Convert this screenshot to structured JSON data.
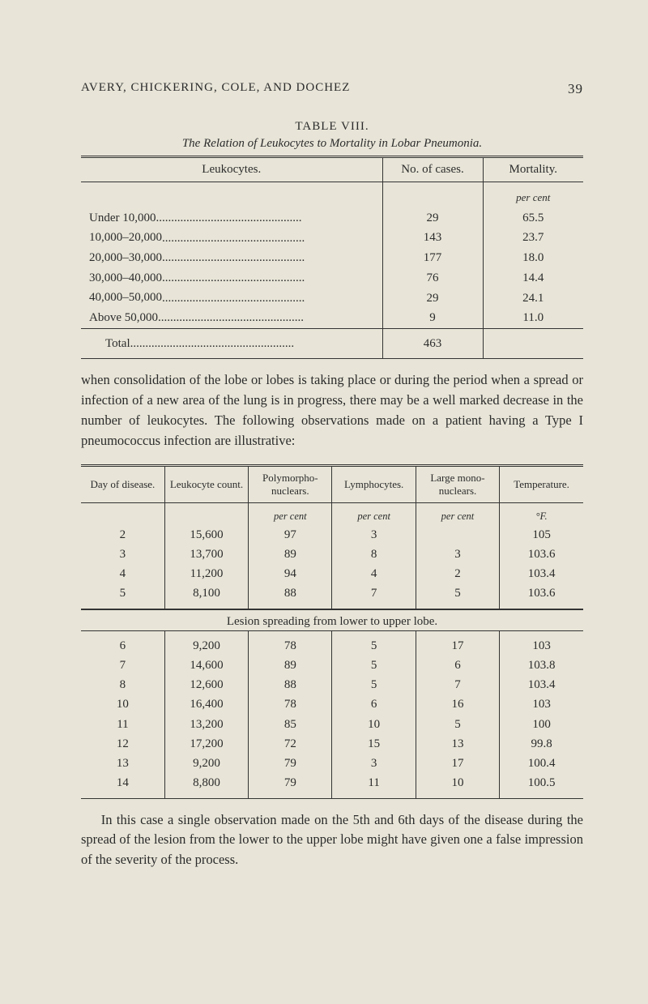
{
  "page": {
    "running_head": "AVERY, CHICKERING, COLE, AND DOCHEZ",
    "page_number": "39"
  },
  "table1": {
    "label": "TABLE VIII.",
    "caption": "The Relation of Leukocytes to Mortality in Lobar Pneumonia.",
    "headers": {
      "col1": "Leukocytes.",
      "col2": "No. of cases.",
      "col3": "Mortality."
    },
    "unit_row": {
      "col3": "per cent"
    },
    "rows": [
      {
        "label": "Under 10,000",
        "cases": "29",
        "mortality": "65.5"
      },
      {
        "label": "10,000–20,000",
        "cases": "143",
        "mortality": "23.7"
      },
      {
        "label": "20,000–30,000",
        "cases": "177",
        "mortality": "18.0"
      },
      {
        "label": "30,000–40,000",
        "cases": "76",
        "mortality": "14.4"
      },
      {
        "label": "40,000–50,000",
        "cases": "29",
        "mortality": "24.1"
      },
      {
        "label": "Above 50,000",
        "cases": "9",
        "mortality": "11.0"
      }
    ],
    "total": {
      "label": "Total",
      "cases": "463",
      "mortality": ""
    }
  },
  "paragraph1": "when consolidation of the lobe or lobes is taking place or during the period when a spread or infection of a new area of the lung is in progress, there may be a well marked decrease in the number of leukocytes. The following observations made on a patient having a Type I pneumococcus infection are illustrative:",
  "table2": {
    "headers": {
      "c1": "Day of disease.",
      "c2": "Leukocyte count.",
      "c3": "Polymorpho-nuclears.",
      "c4": "Lymphocytes.",
      "c5": "Large mono-nuclears.",
      "c6": "Temperature."
    },
    "unit_row": {
      "c3": "per cent",
      "c4": "per cent",
      "c5": "per cent",
      "c6": "°F."
    },
    "rows": [
      {
        "c1": "2",
        "c2": "15,600",
        "c3": "97",
        "c4": "3",
        "c5": "",
        "c6": "105"
      },
      {
        "c1": "3",
        "c2": "13,700",
        "c3": "89",
        "c4": "8",
        "c5": "3",
        "c6": "103.6"
      },
      {
        "c1": "4",
        "c2": "11,200",
        "c3": "94",
        "c4": "4",
        "c5": "2",
        "c6": "103.4"
      },
      {
        "c1": "5",
        "c2": "8,100",
        "c3": "88",
        "c4": "7",
        "c5": "5",
        "c6": "103.6"
      }
    ]
  },
  "lesion_caption": "Lesion spreading from lower to upper lobe.",
  "table3": {
    "rows": [
      {
        "c1": "6",
        "c2": "9,200",
        "c3": "78",
        "c4": "5",
        "c5": "17",
        "c6": "103"
      },
      {
        "c1": "7",
        "c2": "14,600",
        "c3": "89",
        "c4": "5",
        "c5": "6",
        "c6": "103.8"
      },
      {
        "c1": "8",
        "c2": "12,600",
        "c3": "88",
        "c4": "5",
        "c5": "7",
        "c6": "103.4"
      },
      {
        "c1": "10",
        "c2": "16,400",
        "c3": "78",
        "c4": "6",
        "c5": "16",
        "c6": "103"
      },
      {
        "c1": "11",
        "c2": "13,200",
        "c3": "85",
        "c4": "10",
        "c5": "5",
        "c6": "100"
      },
      {
        "c1": "12",
        "c2": "17,200",
        "c3": "72",
        "c4": "15",
        "c5": "13",
        "c6": "99.8"
      },
      {
        "c1": "13",
        "c2": "9,200",
        "c3": "79",
        "c4": "3",
        "c5": "17",
        "c6": "100.4"
      },
      {
        "c1": "14",
        "c2": "8,800",
        "c3": "79",
        "c4": "11",
        "c5": "10",
        "c6": "100.5"
      }
    ]
  },
  "paragraph2": "In this case a single observation made on the 5th and 6th days of the disease during the spread of the lesion from the lower to the upper lobe might have given one a false impression of the severity of the process."
}
